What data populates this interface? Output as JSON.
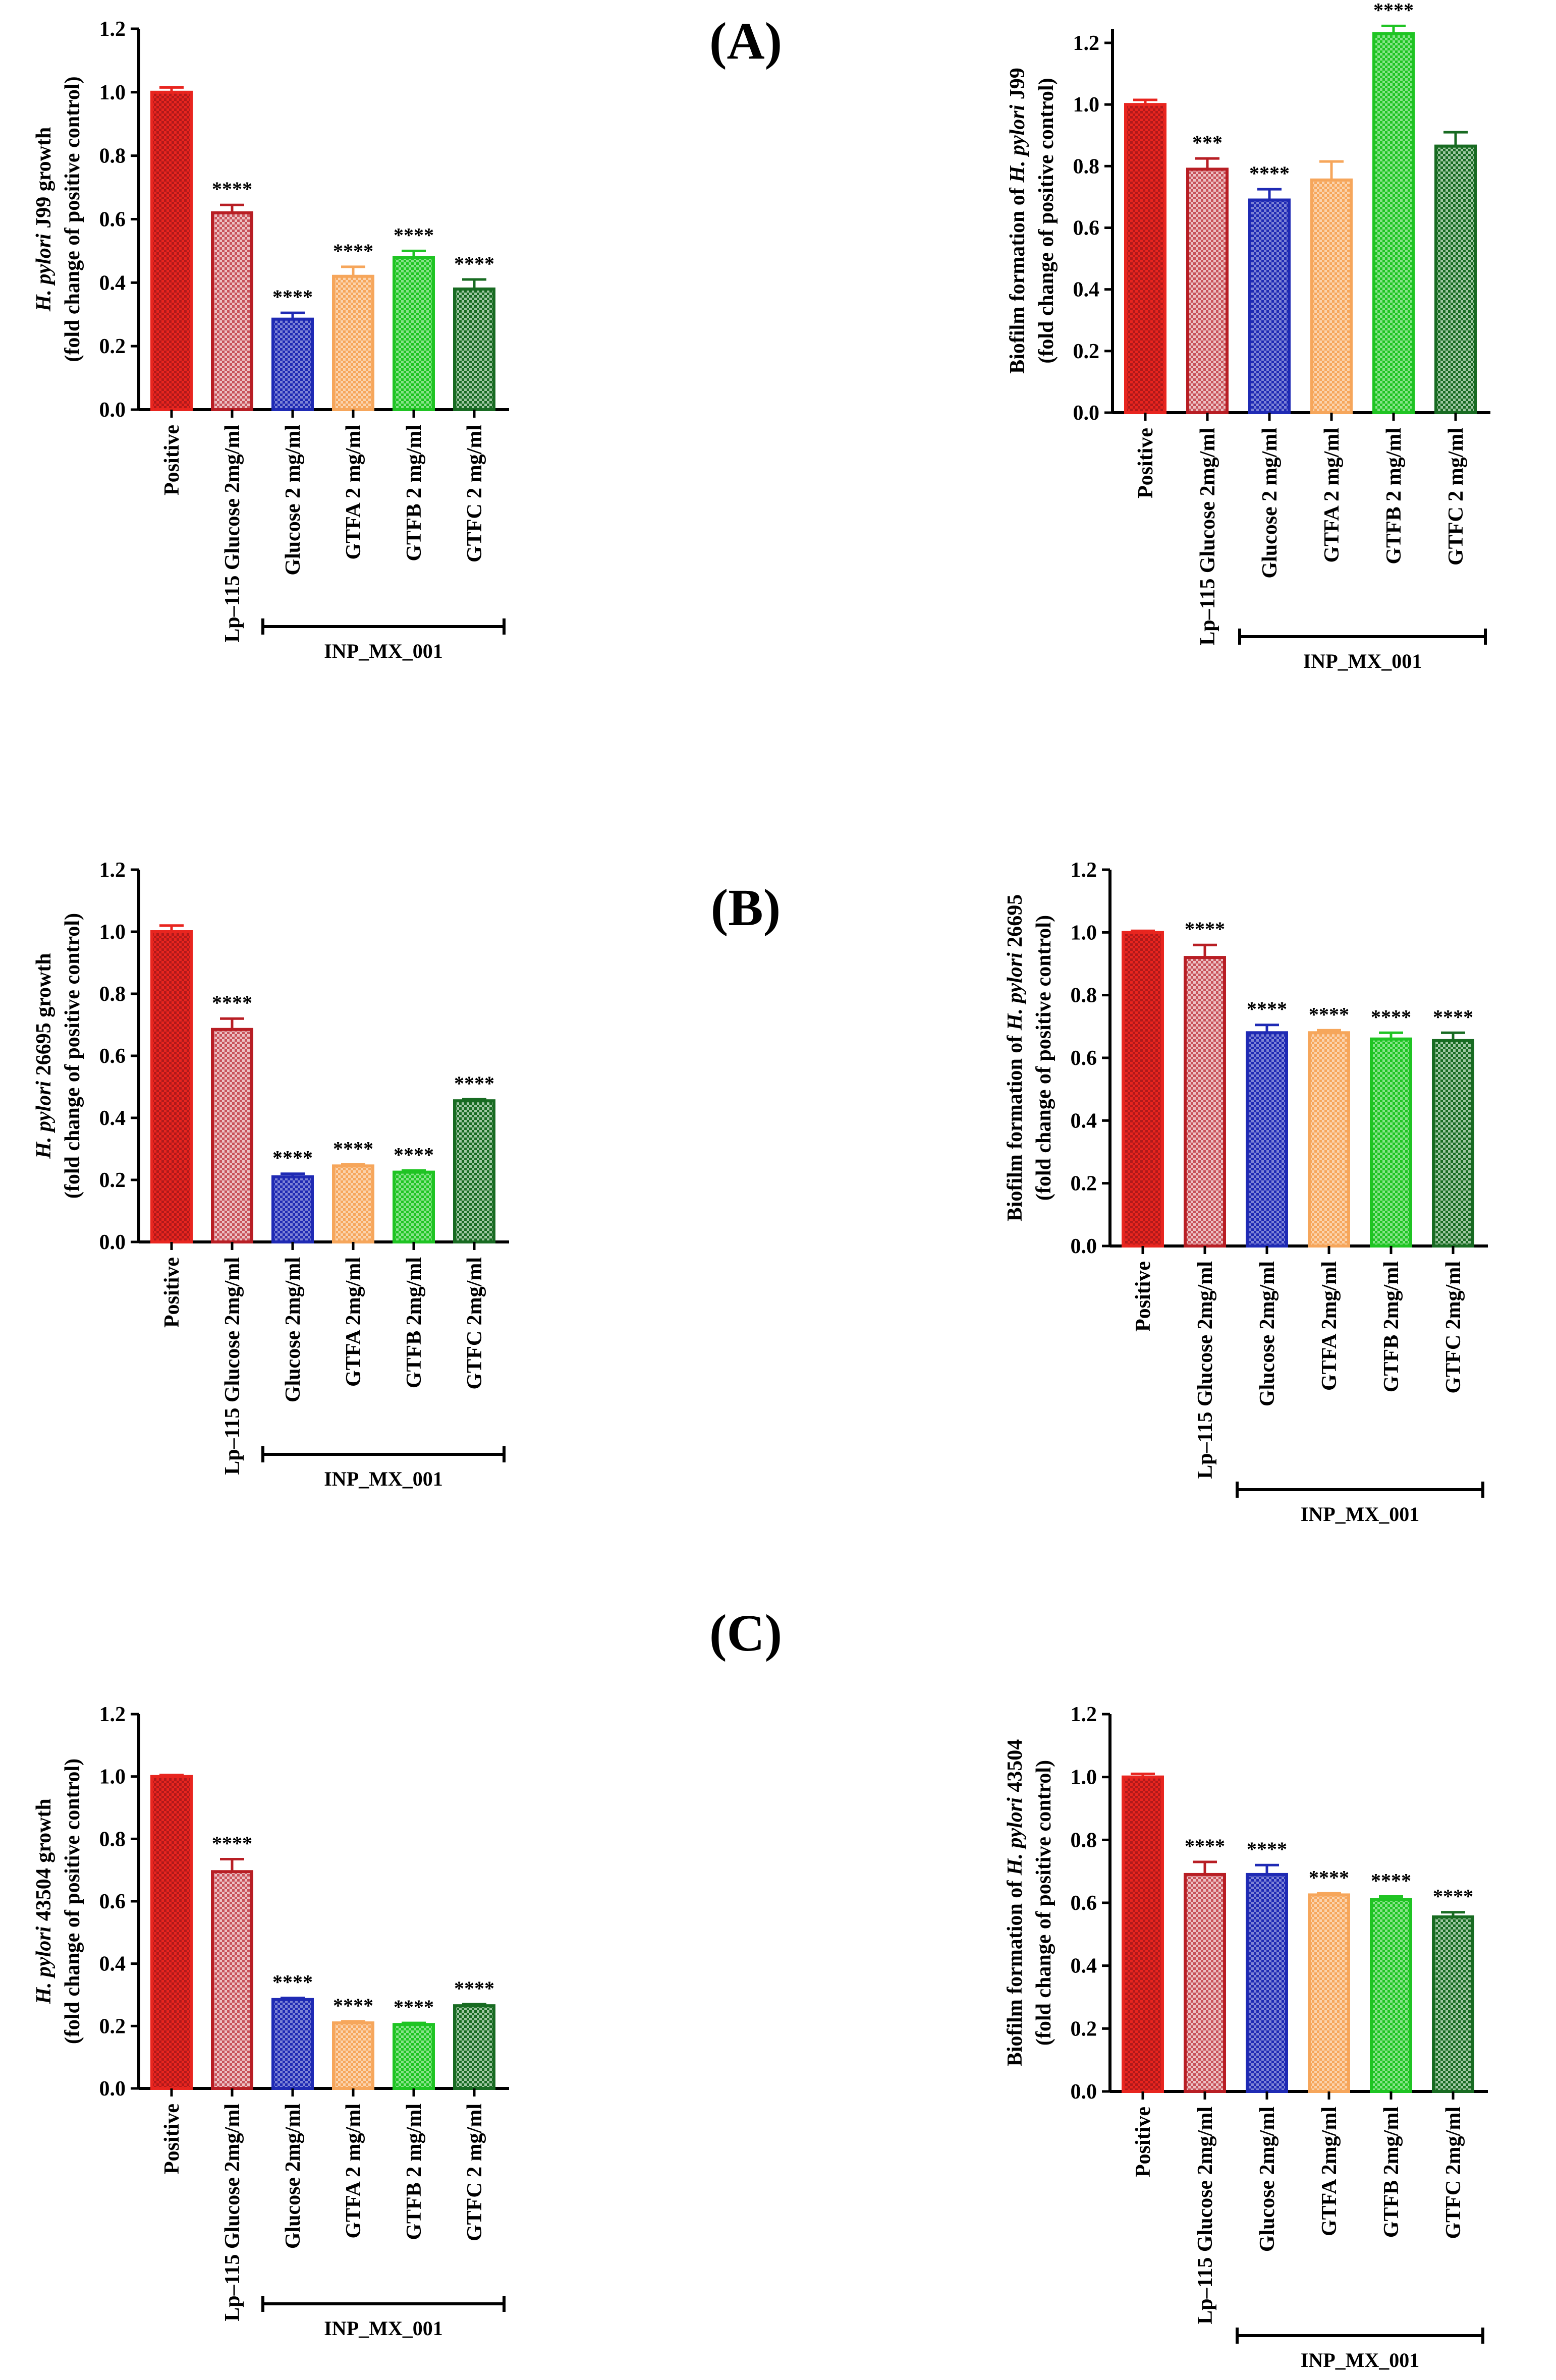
{
  "panel_labels": [
    "(A)",
    "(B)",
    "(C)"
  ],
  "colors": {
    "red": "#e8251f",
    "dark_red": "#b81e24",
    "blue": "#1f2ab4",
    "orange": "#f6a65b",
    "green": "#1fc423",
    "dark_green": "#186b22"
  },
  "chart_data": [
    {
      "type": "bar",
      "panel": "(A)",
      "ylabel_italic": "H. pylori",
      "ylabel_rest": " J99 growth",
      "ylabel_prefix": "",
      "ylabel_line2": "(fold change of positive control)",
      "categories": [
        "Positive",
        "Lp–115 Glucose 2mg/ml",
        "Glucose 2 mg/ml",
        "GTFA 2 mg/ml",
        "GTFB 2 mg/ml",
        "GTFC 2 mg/ml"
      ],
      "values": [
        1.0,
        0.62,
        0.285,
        0.42,
        0.48,
        0.38
      ],
      "errors": [
        0.015,
        0.025,
        0.02,
        0.03,
        0.02,
        0.03
      ],
      "significance": [
        "",
        "****",
        "****",
        "****",
        "****",
        "****"
      ],
      "ylim": [
        0,
        1.2
      ],
      "yticks": [
        "0.0",
        "0.2",
        "0.4",
        "0.6",
        "0.8",
        "1.0",
        "1.2"
      ],
      "group_label": "INP_MX_001"
    },
    {
      "type": "bar",
      "panel": "(A)",
      "ylabel_prefix": "Biofilm formation of ",
      "ylabel_italic": "H. pylori",
      "ylabel_rest": " J99",
      "ylabel_line2": "(fold change of positive control)",
      "categories": [
        "Positive",
        "Lp–115 Glucose 2mg/ml",
        "Glucose 2 mg/ml",
        "GTFA 2 mg/ml",
        "GTFB 2 mg/ml",
        "GTFC 2 mg/ml"
      ],
      "values": [
        1.0,
        0.79,
        0.69,
        0.755,
        1.23,
        0.865
      ],
      "errors": [
        0.015,
        0.035,
        0.035,
        0.06,
        0.025,
        0.045
      ],
      "significance": [
        "",
        "***",
        "****",
        "",
        "****",
        ""
      ],
      "ylim": [
        0,
        1.3
      ],
      "yticks": [
        "0.0",
        "0.2",
        "0.4",
        "0.6",
        "0.8",
        "1.0",
        "1.2"
      ],
      "group_label": "INP_MX_001"
    },
    {
      "type": "bar",
      "panel": "(B)",
      "ylabel_prefix": "",
      "ylabel_italic": "H. pylori",
      "ylabel_rest": " 26695 growth",
      "ylabel_line2": "(fold change of positive control)",
      "categories": [
        "Positive",
        "Lp–115 Glucose 2mg/ml",
        "Glucose 2mg/ml",
        "GTFA 2mg/ml",
        "GTFB 2mg/ml",
        "GTFC 2mg/ml"
      ],
      "values": [
        1.0,
        0.685,
        0.21,
        0.245,
        0.225,
        0.455
      ],
      "errors": [
        0.02,
        0.035,
        0.01,
        0.005,
        0.005,
        0.005
      ],
      "significance": [
        "",
        "****",
        "****",
        "****",
        "****",
        "****"
      ],
      "ylim": [
        0,
        1.2
      ],
      "yticks": [
        "0.0",
        "0.2",
        "0.4",
        "0.6",
        "0.8",
        "1.0",
        "1.2"
      ],
      "group_label": "INP_MX_001"
    },
    {
      "type": "bar",
      "panel": "(B)",
      "ylabel_prefix": "Biofilm formation of ",
      "ylabel_italic": "H. pylori",
      "ylabel_rest": " 26695",
      "ylabel_line2": "(fold change of positive control)",
      "categories": [
        "Positive",
        "Lp–115 Glucose 2mg/ml",
        "Glucose 2mg/ml",
        "GTFA 2mg/ml",
        "GTFB 2mg/ml",
        "GTFC 2mg/ml"
      ],
      "values": [
        1.0,
        0.92,
        0.68,
        0.68,
        0.66,
        0.655
      ],
      "errors": [
        0.005,
        0.04,
        0.025,
        0.008,
        0.02,
        0.025
      ],
      "significance": [
        "",
        "****",
        "****",
        "****",
        "****",
        "****"
      ],
      "ylim": [
        0,
        1.2
      ],
      "yticks": [
        "0.0",
        "0.2",
        "0.4",
        "0.6",
        "0.8",
        "1.0",
        "1.2"
      ],
      "group_label": "INP_MX_001"
    },
    {
      "type": "bar",
      "panel": "(C)",
      "ylabel_prefix": "",
      "ylabel_italic": "H. pylori",
      "ylabel_rest": " 43504 growth",
      "ylabel_line2": "(fold change of positive control)",
      "categories": [
        "Positive",
        "Lp–115 Glucose 2mg/ml",
        "Glucose 2mg/ml",
        "GTFA 2 mg/ml",
        "GTFB 2 mg/ml",
        "GTFC 2 mg/ml"
      ],
      "values": [
        1.0,
        0.695,
        0.285,
        0.21,
        0.205,
        0.265
      ],
      "errors": [
        0.005,
        0.04,
        0.005,
        0.005,
        0.005,
        0.005
      ],
      "significance": [
        "",
        "****",
        "****",
        "****",
        "****",
        "****"
      ],
      "ylim": [
        0,
        1.2
      ],
      "yticks": [
        "0.0",
        "0.2",
        "0.4",
        "0.6",
        "0.8",
        "1.0",
        "1.2"
      ],
      "group_label": "INP_MX_001"
    },
    {
      "type": "bar",
      "panel": "(C)",
      "ylabel_prefix": "Biofilm formation of ",
      "ylabel_italic": "H. pylori",
      "ylabel_rest": " 43504",
      "ylabel_line2": "(fold change of positive control)",
      "categories": [
        "Positive",
        "Lp–115 Glucose 2mg/ml",
        "Glucose 2mg/ml",
        "GTFA 2mg/ml",
        "GTFB 2mg/ml",
        "GTFC 2mg/ml"
      ],
      "values": [
        1.0,
        0.69,
        0.69,
        0.625,
        0.61,
        0.555
      ],
      "errors": [
        0.01,
        0.04,
        0.03,
        0.005,
        0.01,
        0.015
      ],
      "significance": [
        "",
        "****",
        "****",
        "****",
        "****",
        "****"
      ],
      "ylim": [
        0,
        1.2
      ],
      "yticks": [
        "0.0",
        "0.2",
        "0.4",
        "0.6",
        "0.8",
        "1.0",
        "1.2"
      ],
      "group_label": "INP_MX_001"
    }
  ]
}
